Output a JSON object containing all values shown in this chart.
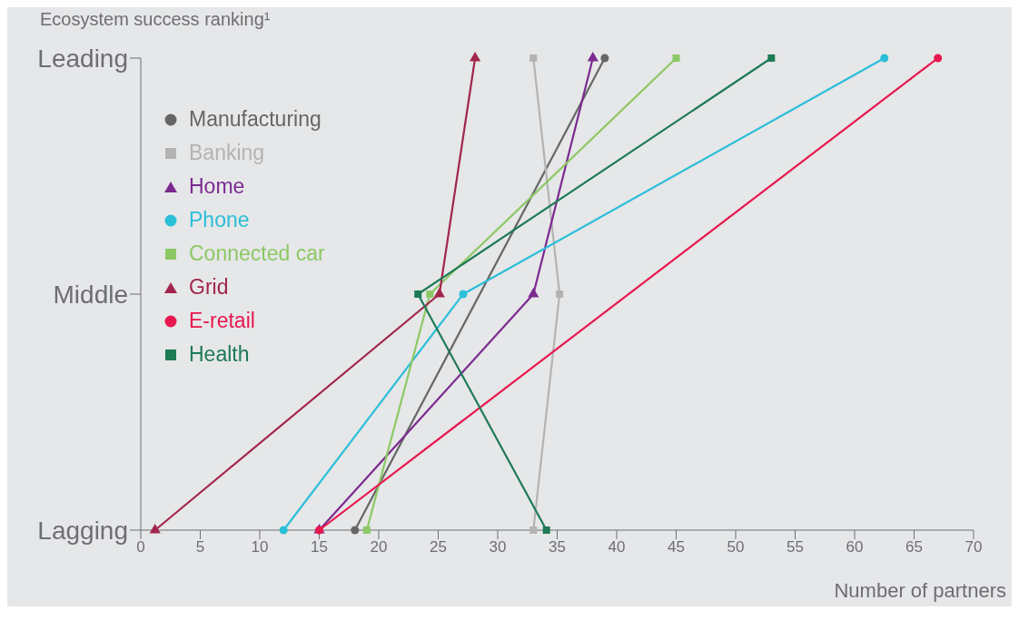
{
  "chart_data": {
    "type": "line",
    "orientation": "horizontal",
    "xlabel": "Number of partners",
    "ylabel": "Ecosystem success ranking¹",
    "xlim": [
      0,
      70
    ],
    "xticks": [
      0,
      5,
      10,
      15,
      20,
      25,
      30,
      35,
      40,
      45,
      50,
      55,
      60,
      65,
      70
    ],
    "categories": [
      "Leading",
      "Middle",
      "Lagging"
    ],
    "grid": false,
    "legend": "top left",
    "series": [
      {
        "name": "Manufacturing",
        "color": "#666666",
        "marker": "circle",
        "values": [
          39,
          null,
          18
        ]
      },
      {
        "name": "Banking",
        "color": "#b3b3b3",
        "marker": "square",
        "values": [
          33,
          35.2,
          33
        ]
      },
      {
        "name": "Home",
        "color": "#7b2a90",
        "marker": "triangle",
        "values": [
          38,
          33,
          15
        ]
      },
      {
        "name": "Phone",
        "color": "#2bbfd9",
        "marker": "circle",
        "values": [
          62.5,
          27.1,
          12
        ]
      },
      {
        "name": "Connected car",
        "color": "#8cc864",
        "marker": "square",
        "values": [
          45,
          24.3,
          19
        ]
      },
      {
        "name": "Grid",
        "color": "#a2264c",
        "marker": "triangle",
        "values": [
          28.1,
          25.1,
          1.2
        ]
      },
      {
        "name": "E-retail",
        "color": "#e8174f",
        "marker": "circle",
        "values": [
          67,
          null,
          15
        ]
      },
      {
        "name": "Health",
        "color": "#1d7a55",
        "marker": "square",
        "values": [
          53,
          23.3,
          34.1
        ]
      }
    ]
  }
}
